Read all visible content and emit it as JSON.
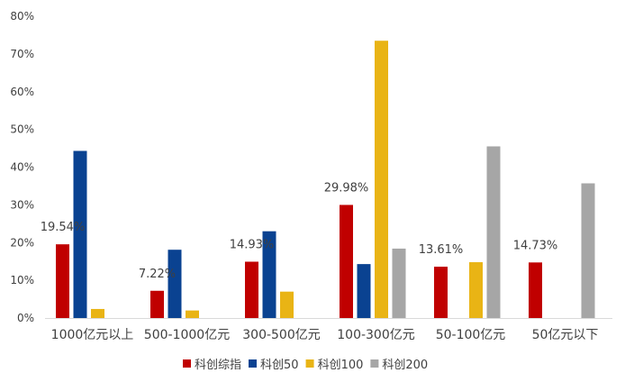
{
  "chart_data": {
    "type": "bar",
    "categories": [
      "1000亿元以上",
      "500-1000亿元",
      "300-500亿元",
      "100-300亿元",
      "50-100亿元",
      "50亿元以下"
    ],
    "series": [
      {
        "name": "科创综指",
        "color": "#c00000",
        "values": [
          19.54,
          7.22,
          14.93,
          29.98,
          13.61,
          14.73
        ]
      },
      {
        "name": "科创50",
        "color": "#0a4291",
        "values": [
          44.3,
          18.1,
          23.0,
          14.3,
          0,
          0
        ]
      },
      {
        "name": "科创100",
        "color": "#e9b415",
        "values": [
          2.4,
          2.0,
          7.0,
          73.5,
          14.8,
          0
        ]
      },
      {
        "name": "科创200",
        "color": "#a6a6a6",
        "values": [
          0,
          0,
          0,
          18.4,
          45.5,
          35.7
        ]
      }
    ],
    "data_labels": [
      "19.54%",
      "7.22%",
      "14.93%",
      "29.98%",
      "13.61%",
      "14.73%"
    ],
    "yticks": [
      "0%",
      "10%",
      "20%",
      "30%",
      "40%",
      "50%",
      "60%",
      "70%",
      "80%"
    ],
    "ylim": [
      0,
      80
    ],
    "grid": false,
    "legend_position": "bottom",
    "title": "",
    "xlabel": "",
    "ylabel": ""
  }
}
